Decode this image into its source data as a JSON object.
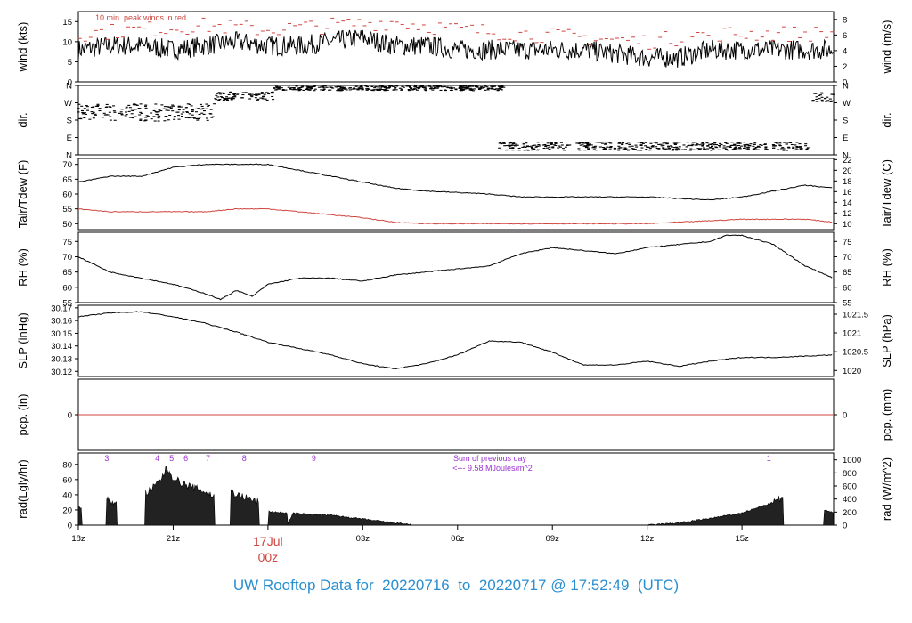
{
  "footer": {
    "prefix": "UW Rooftop Data for",
    "start": "20220716",
    "to": "to",
    "end": "20220717",
    "at": "@",
    "time": "17:52:49",
    "tz": "(UTC)"
  },
  "colors": {
    "trace": "#000000",
    "dewpoint": "#d0453f",
    "peak": "#d0453f",
    "precip": "#d0453f",
    "annot": "#9b30d0",
    "date": "#d0453f",
    "footer": "#2a8fd0"
  },
  "x_axis": {
    "ticks": [
      "18z",
      "21z",
      "03z",
      "06z",
      "09z",
      "12z",
      "15z"
    ],
    "tick_hours": [
      0,
      3,
      9,
      12,
      15,
      18,
      21
    ],
    "date_label": "17Jul",
    "date_time": "00z",
    "date_hour": 6,
    "range_hours": [
      0,
      23.9
    ]
  },
  "chart_data": [
    {
      "type": "line",
      "panel": "wind",
      "ylabel_left": "wind (kts)",
      "ylabel_right": "wind (m/s)",
      "ylim": [
        0,
        17.5
      ],
      "yticks_left": [
        "0",
        "5",
        "10",
        "15"
      ],
      "yticks_left_values": [
        0,
        5,
        10,
        15
      ],
      "yticks_right": [
        "0",
        "2",
        "4",
        "6",
        "8"
      ],
      "yticks_right_values": [
        0,
        3.89,
        7.78,
        11.66,
        15.55
      ],
      "annotation": "10 min. peak winds in red",
      "series": [
        {
          "name": "wind speed",
          "x": [
            0,
            1,
            2,
            3,
            4,
            5,
            6,
            7,
            8,
            9,
            10,
            11,
            12,
            13,
            14,
            15,
            16,
            17,
            18,
            19,
            20,
            21,
            22,
            23,
            23.9
          ],
          "y": [
            8,
            9,
            9,
            8,
            9,
            10,
            9,
            9,
            10,
            11,
            9,
            9,
            8,
            8,
            8,
            8,
            8,
            7,
            6,
            6,
            8,
            8,
            8,
            8,
            8
          ]
        },
        {
          "name": "10 min. peak",
          "x": [
            0,
            2,
            4,
            6,
            8,
            10,
            12,
            14,
            16,
            18,
            20,
            22,
            23.9
          ],
          "y": [
            12,
            13,
            14,
            13,
            14,
            15,
            13,
            12,
            11,
            10,
            12,
            12,
            12
          ]
        }
      ]
    },
    {
      "type": "scatter",
      "panel": "direction",
      "ylabel_left": "dir.",
      "ylabel_right": "dir.",
      "ylim": [
        0,
        360
      ],
      "yticks_left": [
        "N",
        "E",
        "S",
        "W",
        "N"
      ],
      "yticks_left_values": [
        0,
        90,
        180,
        270,
        360
      ],
      "segments": [
        {
          "x0": 0,
          "x1": 4.3,
          "center": 220,
          "spread": 45
        },
        {
          "x0": 4.3,
          "x1": 6.2,
          "center": 305,
          "spread": 22
        },
        {
          "x0": 6.2,
          "x1": 13.5,
          "center": 345,
          "spread": 12
        },
        {
          "x0": 13.3,
          "x1": 23.1,
          "center": 45,
          "spread": 22
        },
        {
          "x0": 23.2,
          "x1": 23.9,
          "center": 300,
          "spread": 25
        }
      ]
    },
    {
      "type": "line",
      "panel": "temperature",
      "ylabel_left": "Tair/Tdew (F)",
      "ylabel_right": "Tair/Tdew (C)",
      "ylim": [
        48,
        72
      ],
      "yticks_left": [
        "50",
        "55",
        "60",
        "65",
        "70"
      ],
      "yticks_left_values": [
        50,
        55,
        60,
        65,
        70
      ],
      "yticks_right": [
        "10",
        "12",
        "14",
        "16",
        "18",
        "20",
        "22"
      ],
      "yticks_right_values": [
        50,
        53.6,
        57.2,
        60.8,
        64.4,
        68,
        71.6
      ],
      "series": [
        {
          "name": "Tair",
          "x": [
            0,
            1,
            2,
            3,
            4,
            5,
            6,
            7,
            8,
            9,
            10,
            11,
            12,
            13,
            14,
            15,
            16,
            17,
            18,
            19,
            20,
            21,
            22,
            23,
            23.9
          ],
          "y": [
            64,
            66,
            66,
            69,
            70,
            70,
            70,
            68,
            66,
            64,
            62,
            61,
            60.5,
            60,
            59,
            59,
            59,
            59,
            59,
            58.5,
            58,
            59,
            61,
            63,
            62
          ]
        },
        {
          "name": "Tdew",
          "x": [
            0,
            1,
            2,
            3,
            4,
            5,
            6,
            7,
            8,
            9,
            10,
            11,
            12,
            13,
            14,
            15,
            16,
            17,
            18,
            19,
            20,
            21,
            22,
            23,
            23.9
          ],
          "y": [
            55,
            54,
            54,
            54,
            54,
            55,
            55,
            54,
            53,
            52,
            50.5,
            50,
            50,
            50,
            50,
            50,
            50,
            50,
            50,
            50.5,
            51,
            51.5,
            51.5,
            51.5,
            50.5
          ]
        }
      ]
    },
    {
      "type": "line",
      "panel": "rh",
      "ylabel_left": "RH (%)",
      "ylabel_right": "RH (%)",
      "ylim": [
        55,
        78
      ],
      "yticks_left": [
        "55",
        "60",
        "65",
        "70",
        "75"
      ],
      "yticks_left_values": [
        55,
        60,
        65,
        70,
        75
      ],
      "series": [
        {
          "name": "RH",
          "x": [
            0,
            1,
            2,
            3,
            4,
            4.5,
            5,
            5.5,
            6,
            7,
            8,
            9,
            10,
            11,
            12,
            13,
            14,
            15,
            16,
            17,
            18,
            19,
            20,
            20.5,
            21,
            22,
            23,
            23.9
          ],
          "y": [
            70,
            65,
            63,
            61,
            58,
            56,
            59,
            57,
            61,
            63,
            63,
            62,
            64,
            65,
            66,
            67,
            71,
            73,
            72,
            71,
            73,
            74,
            75,
            77,
            77,
            74,
            67,
            63
          ]
        }
      ]
    },
    {
      "type": "line",
      "panel": "pressure",
      "ylabel_left": "SLP (inHg)",
      "ylabel_right": "SLP (hPa)",
      "ylim": [
        30.116,
        30.172
      ],
      "yticks_left": [
        "30.12",
        "30.13",
        "30.14",
        "30.15",
        "30.16",
        "30.17"
      ],
      "yticks_left_values": [
        30.12,
        30.13,
        30.14,
        30.15,
        30.16,
        30.17
      ],
      "yticks_right": [
        "1020",
        "1020.5",
        "1021",
        "1021.5"
      ],
      "yticks_right_values": [
        30.1207,
        30.1355,
        30.1503,
        30.165
      ],
      "series": [
        {
          "name": "SLP",
          "x": [
            0,
            1,
            2,
            3,
            4,
            5,
            6,
            7,
            8,
            9,
            10,
            11,
            12,
            13,
            14,
            15,
            16,
            17,
            18,
            19,
            20,
            21,
            22,
            23,
            23.9
          ],
          "y": [
            30.163,
            30.166,
            30.167,
            30.163,
            30.158,
            30.151,
            30.143,
            30.138,
            30.133,
            30.126,
            30.122,
            30.126,
            30.133,
            30.144,
            30.143,
            30.135,
            30.125,
            30.125,
            30.128,
            30.124,
            30.128,
            30.131,
            30.131,
            30.132,
            30.133
          ]
        }
      ]
    },
    {
      "type": "line",
      "panel": "precip",
      "ylabel_left": "pcp. (in)",
      "ylabel_right": "pcp. (mm)",
      "ylim": [
        -1,
        1
      ],
      "yticks_left": [
        "0"
      ],
      "yticks_left_values": [
        0
      ],
      "yticks_right": [
        "0"
      ],
      "yticks_right_values": [
        0
      ],
      "series": [
        {
          "name": "pcp",
          "x": [
            0,
            23.9
          ],
          "y": [
            0,
            0
          ]
        }
      ]
    },
    {
      "type": "area",
      "panel": "radiation",
      "ylabel_left": "rad(Lgly/hr)",
      "ylabel_right": "rad (W/m^2)",
      "ylim": [
        0,
        95
      ],
      "yticks_left": [
        "0",
        "20",
        "40",
        "60",
        "80"
      ],
      "yticks_left_values": [
        0,
        20,
        40,
        60,
        80
      ],
      "yticks_right": [
        "0",
        "200",
        "400",
        "600",
        "800",
        "1000"
      ],
      "yticks_right_values": [
        0,
        17.2,
        34.4,
        51.6,
        68.8,
        86
      ],
      "annotation_line1": "Sum of previous day",
      "annotation_line2": "<--- 9.58 MJoules/m^2",
      "markers": [
        {
          "label": "3",
          "x": 0.9
        },
        {
          "label": "4",
          "x": 2.5
        },
        {
          "label": "5",
          "x": 2.95
        },
        {
          "label": "6",
          "x": 3.4
        },
        {
          "label": "7",
          "x": 4.1
        },
        {
          "label": "8",
          "x": 5.25
        },
        {
          "label": "9",
          "x": 7.45
        },
        {
          "label": "1",
          "x": 21.85
        }
      ],
      "series": [
        {
          "name": "radiation",
          "x": [
            0,
            0.1,
            0.12,
            0.9,
            0.9,
            1.2,
            1.21,
            2.1,
            2.11,
            2.3,
            2.6,
            2.8,
            3.0,
            3.3,
            3.6,
            4.0,
            4.3,
            4.31,
            4.8,
            4.81,
            5.0,
            5.4,
            5.7,
            5.71,
            6.0,
            6.01,
            6.6,
            6.61,
            6.8,
            7.0,
            8.0,
            9.0,
            10.0,
            10.5,
            10.51,
            18.0,
            19.0,
            20.0,
            21.0,
            21.5,
            22.0,
            22.3,
            22.31,
            23.6,
            23.61,
            23.9
          ],
          "y": [
            25,
            22,
            0,
            0,
            33,
            30,
            0,
            0,
            42,
            46,
            60,
            75,
            62,
            55,
            50,
            44,
            38,
            0,
            0,
            45,
            40,
            35,
            30,
            0,
            0,
            18,
            16,
            0,
            16,
            15,
            13,
            8,
            3,
            1,
            0,
            0,
            3,
            9,
            16,
            23,
            30,
            36,
            0,
            0,
            20,
            16
          ]
        }
      ]
    }
  ]
}
